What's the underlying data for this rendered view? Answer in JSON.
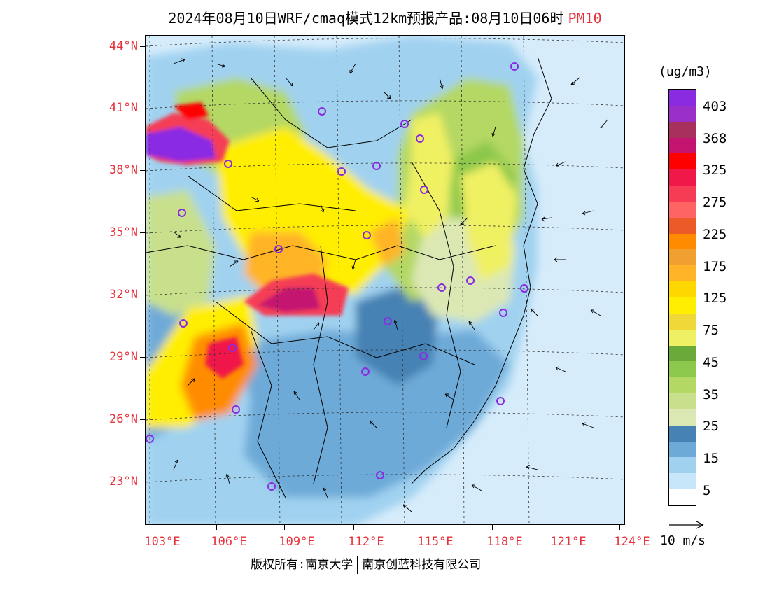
{
  "title": {
    "text": "2024年08月10日WRF/cmaq模式12km预报产品:08月10日06时",
    "species": "PM10"
  },
  "map": {
    "latitude_labels": [
      "44°N",
      "41°N",
      "38°N",
      "35°N",
      "32°N",
      "29°N",
      "26°N",
      "23°N"
    ],
    "longitude_labels": [
      "103°E",
      "106°E",
      "109°E",
      "112°E",
      "115°E",
      "118°E",
      "121°E",
      "124°E"
    ],
    "forecast_time": "2024-08-10 06时",
    "pollutant": "PM10",
    "hotspots": [
      "内蒙古西部 >403",
      "四川盆地 275-325",
      "陕南/渝北 275-325"
    ]
  },
  "legend": {
    "unit": "(ug/m3)",
    "labels": [
      "403",
      "368",
      "325",
      "275",
      "225",
      "175",
      "125",
      "75",
      "45",
      "35",
      "25",
      "15",
      "5"
    ],
    "colors": [
      "#8a2be2",
      "#9b30c8",
      "#a8305c",
      "#c41470",
      "#ff0000",
      "#f01848",
      "#f53c54",
      "#ff6464",
      "#ec5a28",
      "#ff8c00",
      "#f0a030",
      "#ffb428",
      "#ffd700",
      "#ffee00",
      "#f0d838",
      "#f0f064",
      "#6aaa3a",
      "#8cc84b",
      "#b4d864",
      "#c8e08c",
      "#dce8b4",
      "#4682b4",
      "#6eaad8",
      "#a0d2f0",
      "#c8e6fa",
      "#ffffff"
    ]
  },
  "wind_key": {
    "label": "10 m/s"
  },
  "footer": {
    "copyright": "版权所有:南京大学",
    "company": "南京创蓝科技有限公司"
  },
  "colors": {
    "accent": "#e8303a",
    "frame": "#000000",
    "sea": "#d6ecfb"
  }
}
